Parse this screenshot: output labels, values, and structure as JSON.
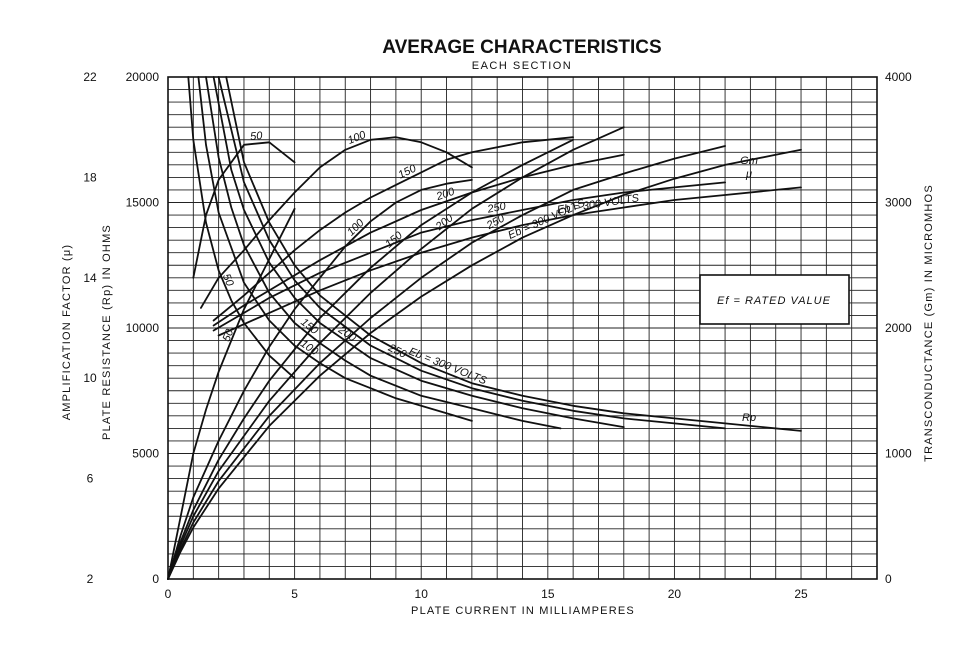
{
  "chart_data": {
    "type": "line",
    "title": "AVERAGE CHARACTERISTICS",
    "subtitle": "EACH SECTION",
    "xlabel": "PLATE CURRENT IN MILLIAMPERES",
    "ylabel_left_outer": "AMPLIFICATION FACTOR (μ)",
    "ylabel_left_inner": "PLATE RESISTANCE (Rp) IN OHMS",
    "ylabel_right": "TRANSCONDUCTANCE (Gm) IN MICROMHOS",
    "xlim": [
      0,
      28
    ],
    "xticks": [
      0,
      5,
      10,
      15,
      20,
      25
    ],
    "rp_axis": {
      "range": [
        0,
        20000
      ],
      "ticks": [
        0,
        5000,
        10000,
        15000,
        20000
      ]
    },
    "mu_axis": {
      "range": [
        2,
        22
      ],
      "ticks": [
        2,
        6,
        10,
        14,
        18,
        22
      ]
    },
    "gm_axis": {
      "range": [
        0,
        4000
      ],
      "ticks": [
        0,
        1000,
        2000,
        3000,
        4000
      ]
    },
    "grid": true,
    "annotation_box": "Ef = RATED VALUE",
    "family_labels": {
      "mu": "μ",
      "gm": "Gm",
      "rp": "Rp",
      "mu_300": "Eb = 300 VOLTS",
      "gm_300": "Eb = 300 VOLTS",
      "rp_300": "Eb = 300 VOLTS"
    },
    "series": [
      {
        "family": "mu",
        "axis": "mu",
        "label": "50",
        "x": [
          1.0,
          1.5,
          2.0,
          3.0,
          4.0,
          5.0
        ],
        "y": [
          14.0,
          16.5,
          17.9,
          19.3,
          19.4,
          18.6
        ]
      },
      {
        "family": "mu",
        "axis": "mu",
        "label": "100",
        "x": [
          1.3,
          2.0,
          3.0,
          4.0,
          5.0,
          6.0,
          7.0,
          8.0,
          9.0,
          10.0,
          11.0,
          12.0
        ],
        "y": [
          12.8,
          14.0,
          15.1,
          16.3,
          17.4,
          18.4,
          19.1,
          19.5,
          19.6,
          19.4,
          19.0,
          18.4
        ]
      },
      {
        "family": "mu",
        "axis": "mu",
        "label": "150",
        "x": [
          1.8,
          3.0,
          4.0,
          5.0,
          6.0,
          7.0,
          8.0,
          9.0,
          10.0,
          11.0,
          12.0,
          14.0,
          16.0
        ],
        "y": [
          12.3,
          13.3,
          14.2,
          15.1,
          15.9,
          16.6,
          17.2,
          17.7,
          18.2,
          18.7,
          19.0,
          19.4,
          19.6
        ]
      },
      {
        "family": "mu",
        "axis": "mu",
        "label": "200",
        "x": [
          1.8,
          3.0,
          4.0,
          6.0,
          8.0,
          10.0,
          12.0,
          14.0,
          16.0,
          18.0
        ],
        "y": [
          12.1,
          12.9,
          13.5,
          14.7,
          15.8,
          16.7,
          17.4,
          18.0,
          18.5,
          18.9
        ]
      },
      {
        "family": "mu",
        "axis": "mu",
        "label": "250",
        "x": [
          1.8,
          3.0,
          4.0,
          6.0,
          8.0,
          10.0,
          12.0,
          14.0,
          16.0,
          18.0,
          20.0,
          22.0
        ],
        "y": [
          11.9,
          12.6,
          13.2,
          14.2,
          15.0,
          15.8,
          16.3,
          16.7,
          17.1,
          17.4,
          17.6,
          17.8
        ]
      },
      {
        "family": "mu",
        "axis": "mu",
        "label": "300",
        "x": [
          2.0,
          4.0,
          6.0,
          8.0,
          10.0,
          12.0,
          14.0,
          16.0,
          18.0,
          20.0,
          22.0,
          24.0,
          25.0
        ],
        "y": [
          11.7,
          12.6,
          13.5,
          14.3,
          15.0,
          15.6,
          16.1,
          16.5,
          16.8,
          17.1,
          17.3,
          17.5,
          17.6
        ]
      },
      {
        "family": "gm",
        "axis": "gm",
        "label": "50",
        "x": [
          0.0,
          0.5,
          1.0,
          1.5,
          2.0,
          3.0,
          4.0,
          5.0
        ],
        "y": [
          0,
          500,
          1000,
          1350,
          1650,
          2150,
          2550,
          2950
        ]
      },
      {
        "family": "gm",
        "axis": "gm",
        "label": "100",
        "x": [
          0.0,
          0.5,
          1.0,
          2.0,
          3.0,
          4.0,
          5.0,
          6.0,
          7.0,
          8.0,
          9.0,
          10.0,
          11.0,
          12.0
        ],
        "y": [
          0,
          350,
          650,
          1100,
          1500,
          1850,
          2150,
          2400,
          2650,
          2850,
          3000,
          3100,
          3150,
          3180
        ]
      },
      {
        "family": "gm",
        "axis": "gm",
        "label": "150",
        "x": [
          0.0,
          0.5,
          1.0,
          2.0,
          3.0,
          4.0,
          6.0,
          8.0,
          10.0,
          12.0,
          14.0,
          16.0
        ],
        "y": [
          0,
          300,
          550,
          950,
          1280,
          1580,
          2080,
          2480,
          2820,
          3080,
          3300,
          3500
        ]
      },
      {
        "family": "gm",
        "axis": "gm",
        "label": "200",
        "x": [
          0.0,
          0.5,
          1.0,
          2.0,
          4.0,
          6.0,
          8.0,
          10.0,
          12.0,
          14.0,
          16.0,
          18.0
        ],
        "y": [
          0,
          270,
          500,
          860,
          1420,
          1880,
          2280,
          2630,
          2950,
          3200,
          3420,
          3600
        ]
      },
      {
        "family": "gm",
        "axis": "gm",
        "label": "250",
        "x": [
          0.0,
          0.5,
          1.0,
          2.0,
          4.0,
          6.0,
          8.0,
          10.0,
          12.0,
          14.0,
          16.0,
          18.0,
          20.0,
          22.0
        ],
        "y": [
          0,
          240,
          450,
          780,
          1300,
          1720,
          2080,
          2400,
          2680,
          2900,
          3100,
          3230,
          3350,
          3450
        ]
      },
      {
        "family": "gm",
        "axis": "gm",
        "label": "300",
        "x": [
          0.0,
          0.5,
          1.0,
          2.0,
          4.0,
          6.0,
          8.0,
          10.0,
          12.0,
          14.0,
          16.0,
          18.0,
          20.0,
          22.0,
          24.0,
          25.0
        ],
        "y": [
          0,
          220,
          410,
          720,
          1220,
          1620,
          1960,
          2250,
          2500,
          2720,
          2900,
          3060,
          3190,
          3300,
          3380,
          3420
        ]
      },
      {
        "family": "rp",
        "axis": "rp",
        "label": "50",
        "x": [
          0.8,
          1.0,
          1.5,
          2.0,
          2.5,
          3.0,
          4.0,
          5.0
        ],
        "y": [
          20000,
          17500,
          14200,
          12300,
          11100,
          10200,
          8900,
          8000
        ]
      },
      {
        "family": "rp",
        "axis": "rp",
        "label": "100",
        "x": [
          1.2,
          1.5,
          2.0,
          3.0,
          4.0,
          5.0,
          6.0,
          7.0,
          8.0,
          9.0,
          10.0,
          11.0,
          12.0
        ],
        "y": [
          20000,
          17300,
          14600,
          11800,
          10300,
          9300,
          8600,
          8000,
          7600,
          7200,
          6900,
          6600,
          6300
        ]
      },
      {
        "family": "rp",
        "axis": "rp",
        "label": "150",
        "x": [
          1.5,
          2.0,
          2.5,
          3.0,
          4.0,
          5.0,
          6.0,
          7.0,
          8.0,
          10.0,
          12.0,
          14.0,
          15.5
        ],
        "y": [
          20000,
          16800,
          14800,
          13300,
          11400,
          10200,
          9400,
          8700,
          8100,
          7300,
          6800,
          6300,
          6000
        ]
      },
      {
        "family": "rp",
        "axis": "rp",
        "label": "200",
        "x": [
          1.8,
          2.5,
          3.0,
          4.0,
          5.0,
          6.0,
          8.0,
          10.0,
          12.0,
          14.0,
          16.0,
          18.0
        ],
        "y": [
          20000,
          16300,
          14700,
          12600,
          11200,
          10200,
          8800,
          7900,
          7300,
          6800,
          6400,
          6050
        ]
      },
      {
        "family": "rp",
        "axis": "rp",
        "label": "250",
        "x": [
          2.0,
          3.0,
          4.0,
          5.0,
          6.0,
          8.0,
          10.0,
          12.0,
          14.0,
          16.0,
          18.0,
          20.0,
          22.0
        ],
        "y": [
          20000,
          15800,
          13500,
          11900,
          10800,
          9300,
          8300,
          7600,
          7100,
          6700,
          6400,
          6200,
          6000
        ]
      },
      {
        "family": "rp",
        "axis": "rp",
        "label": "300",
        "x": [
          2.3,
          3.0,
          4.0,
          5.0,
          6.0,
          8.0,
          10.0,
          12.0,
          14.0,
          16.0,
          18.0,
          20.0,
          22.0,
          25.0
        ],
        "y": [
          20000,
          16600,
          14200,
          12500,
          11300,
          9700,
          8600,
          7800,
          7300,
          6900,
          6600,
          6400,
          6200,
          5900
        ]
      }
    ]
  }
}
